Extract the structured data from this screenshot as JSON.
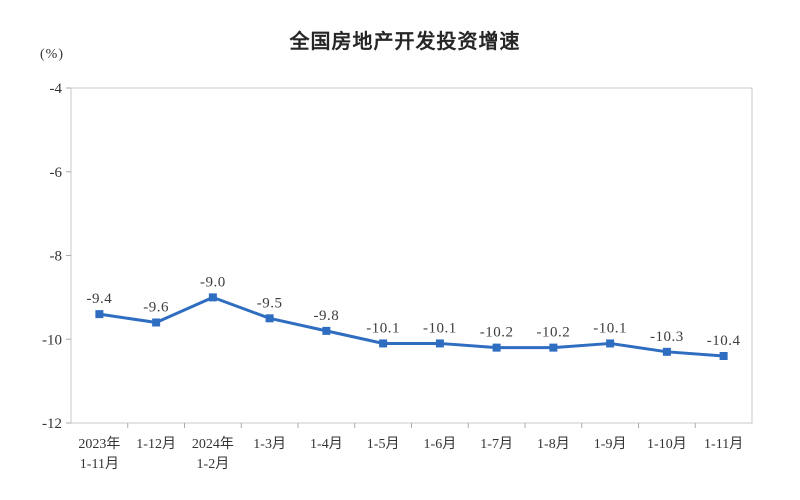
{
  "chart_data": {
    "type": "line",
    "title": "全国房地产开发投资增速",
    "unit_label": "(%)",
    "categories": [
      [
        "2023年",
        "1-11月"
      ],
      [
        "1-12月"
      ],
      [
        "2024年",
        "1-2月"
      ],
      [
        "1-3月"
      ],
      [
        "1-4月"
      ],
      [
        "1-5月"
      ],
      [
        "1-6月"
      ],
      [
        "1-7月"
      ],
      [
        "1-8月"
      ],
      [
        "1-9月"
      ],
      [
        "1-10月"
      ],
      [
        "1-11月"
      ]
    ],
    "values": [
      -9.4,
      -9.6,
      -9.0,
      -9.5,
      -9.8,
      -10.1,
      -10.1,
      -10.2,
      -10.2,
      -10.1,
      -10.3,
      -10.4
    ],
    "data_labels": [
      "-9.4",
      "-9.6",
      "-9.0",
      "-9.5",
      "-9.8",
      "-10.1",
      "-10.1",
      "-10.2",
      "-10.2",
      "-10.1",
      "-10.3",
      "-10.4"
    ],
    "y_ticks": [
      -4,
      -6,
      -8,
      -10,
      -12
    ],
    "ylim": [
      -12,
      -4
    ],
    "grid": false,
    "legend": "none",
    "marker_shape": "square",
    "colors": {
      "line": "#2E6DC0",
      "marker": "#2E6DC0",
      "plot_border": "#C9C9C9",
      "tick_mark": "#ABABAB",
      "axis_text": "#333333",
      "data_label_text": "#3d3d3d",
      "title_text": "#262626",
      "background": "#FFFFFF"
    }
  }
}
